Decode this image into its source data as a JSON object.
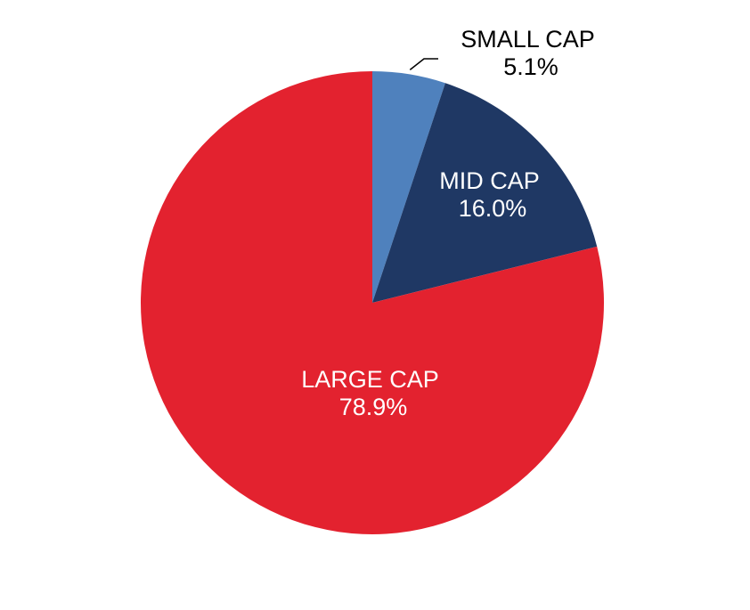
{
  "chart_data": {
    "type": "pie",
    "title": "",
    "slices": [
      {
        "label": "SMALL CAP",
        "value": 5.1,
        "value_label": "5.1%",
        "color": "#4f81bd",
        "label_color": "#000000",
        "label_placement": "outside"
      },
      {
        "label": "MID CAP",
        "value": 16.0,
        "value_label": "16.0%",
        "color": "#1f3864",
        "label_color": "#ffffff",
        "label_placement": "inside"
      },
      {
        "label": "LARGE CAP",
        "value": 78.9,
        "value_label": "78.9%",
        "color": "#e3222f",
        "label_color": "#ffffff",
        "label_placement": "inside"
      }
    ],
    "start": "12 o'clock",
    "direction": "clockwise",
    "legend": "none"
  }
}
